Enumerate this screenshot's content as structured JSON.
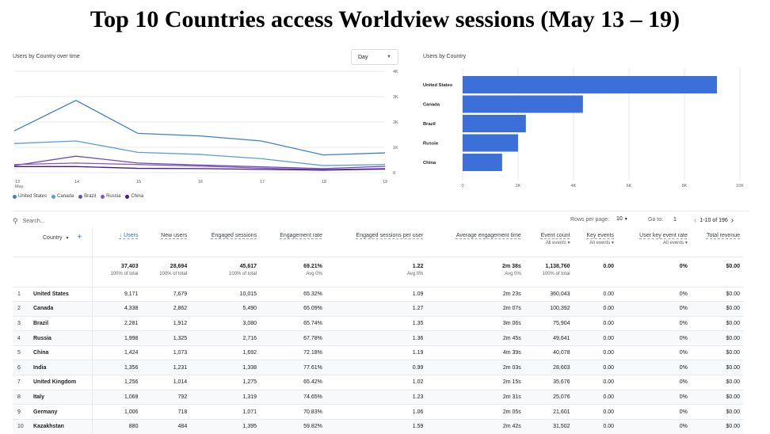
{
  "page_title": "Top 10 Countries access Worldview sessions (May 13 – 19)",
  "line_card": {
    "title": "Users by Country over time",
    "day_select": "Day",
    "legend": [
      "United States",
      "Canada",
      "Brazil",
      "Russia",
      "China"
    ],
    "colors": [
      "#3b82c4",
      "#5a9fd4",
      "#6a4fb3",
      "#7e57c2",
      "#4a148c"
    ]
  },
  "bar_card": {
    "title": "Users by Country"
  },
  "chart_data": [
    {
      "type": "line",
      "title": "Users by Country over time",
      "x": [
        "13",
        "14",
        "15",
        "16",
        "17",
        "18",
        "19"
      ],
      "x_sublabel": "May",
      "ylim": [
        0,
        4000
      ],
      "y_ticks": [
        "0",
        "1K",
        "2K",
        "3K",
        "4K"
      ],
      "series": [
        {
          "name": "United States",
          "values": [
            1650,
            2850,
            1550,
            1450,
            1250,
            700,
            780
          ]
        },
        {
          "name": "Canada",
          "values": [
            1150,
            1250,
            800,
            720,
            550,
            280,
            320
          ]
        },
        {
          "name": "Brazil",
          "values": [
            280,
            650,
            380,
            300,
            230,
            160,
            250
          ]
        },
        {
          "name": "Russia",
          "values": [
            320,
            380,
            320,
            260,
            180,
            120,
            160
          ]
        },
        {
          "name": "China",
          "values": [
            240,
            240,
            170,
            160,
            130,
            100,
            140
          ]
        }
      ]
    },
    {
      "type": "bar",
      "title": "Users by Country",
      "categories": [
        "United States",
        "Canada",
        "Brazil",
        "Russia",
        "China"
      ],
      "values": [
        9171,
        4338,
        2281,
        1998,
        1424
      ],
      "xlim": [
        0,
        10000
      ],
      "x_ticks": [
        "0",
        "2K",
        "4K",
        "6K",
        "8K",
        "10K"
      ]
    }
  ],
  "toolbar": {
    "search_placeholder": "Search...",
    "rows_per_page_label": "Rows per page:",
    "rows_per_page": "10",
    "goto_label": "Go to:",
    "goto_value": "1",
    "page_info": "1-10 of 196"
  },
  "table": {
    "country_header": "Country",
    "headers": [
      {
        "label": "↓ Users",
        "sub": ""
      },
      {
        "label": "New users",
        "sub": ""
      },
      {
        "label": "Engaged sessions",
        "sub": ""
      },
      {
        "label": "Engagement rate",
        "sub": ""
      },
      {
        "label": "Engaged sessions per user",
        "sub": ""
      },
      {
        "label": "Average engagement time",
        "sub": ""
      },
      {
        "label": "Event count",
        "sub": "All events ▾"
      },
      {
        "label": "Key events",
        "sub": "All events ▾"
      },
      {
        "label": "User key event rate",
        "sub": "All events ▾"
      },
      {
        "label": "Total revenue",
        "sub": ""
      }
    ],
    "totals": [
      {
        "v": "37,403",
        "s": "100% of total"
      },
      {
        "v": "28,694",
        "s": "100% of total"
      },
      {
        "v": "45,617",
        "s": "100% of total"
      },
      {
        "v": "69.21%",
        "s": "Avg 0%"
      },
      {
        "v": "1.22",
        "s": "Avg 0%"
      },
      {
        "v": "2m 38s",
        "s": "Avg 0%"
      },
      {
        "v": "1,138,760",
        "s": "100% of total"
      },
      {
        "v": "0.00",
        "s": ""
      },
      {
        "v": "0%",
        "s": ""
      },
      {
        "v": "$0.00",
        "s": ""
      }
    ],
    "rows": [
      [
        "1",
        "United States",
        "9,171",
        "7,679",
        "10,015",
        "65.32%",
        "1.09",
        "2m 23s",
        "360,043",
        "0.00",
        "0%",
        "$0.00"
      ],
      [
        "2",
        "Canada",
        "4,338",
        "2,862",
        "5,490",
        "65.09%",
        "1.27",
        "2m 07s",
        "100,392",
        "0.00",
        "0%",
        "$0.00"
      ],
      [
        "3",
        "Brazil",
        "2,281",
        "1,912",
        "3,080",
        "65.74%",
        "1.35",
        "3m 06s",
        "75,904",
        "0.00",
        "0%",
        "$0.00"
      ],
      [
        "4",
        "Russia",
        "1,998",
        "1,325",
        "2,716",
        "67.78%",
        "1.36",
        "2m 45s",
        "49,641",
        "0.00",
        "0%",
        "$0.00"
      ],
      [
        "5",
        "China",
        "1,424",
        "1,073",
        "1,692",
        "72.18%",
        "1.19",
        "4m 39s",
        "40,078",
        "0.00",
        "0%",
        "$0.00"
      ],
      [
        "6",
        "India",
        "1,356",
        "1,231",
        "1,338",
        "77.61%",
        "0.99",
        "2m 03s",
        "28,603",
        "0.00",
        "0%",
        "$0.00"
      ],
      [
        "7",
        "United Kingdom",
        "1,256",
        "1,014",
        "1,275",
        "65.42%",
        "1.02",
        "2m 15s",
        "35,676",
        "0.00",
        "0%",
        "$0.00"
      ],
      [
        "8",
        "Italy",
        "1,069",
        "792",
        "1,319",
        "74.65%",
        "1.23",
        "2m 31s",
        "25,076",
        "0.00",
        "0%",
        "$0.00"
      ],
      [
        "9",
        "Germany",
        "1,006",
        "718",
        "1,071",
        "70.83%",
        "1.06",
        "2m 05s",
        "21,601",
        "0.00",
        "0%",
        "$0.00"
      ],
      [
        "10",
        "Kazakhstan",
        "880",
        "484",
        "1,395",
        "59.82%",
        "1.59",
        "2m 42s",
        "31,502",
        "0.00",
        "0%",
        "$0.00"
      ]
    ]
  }
}
